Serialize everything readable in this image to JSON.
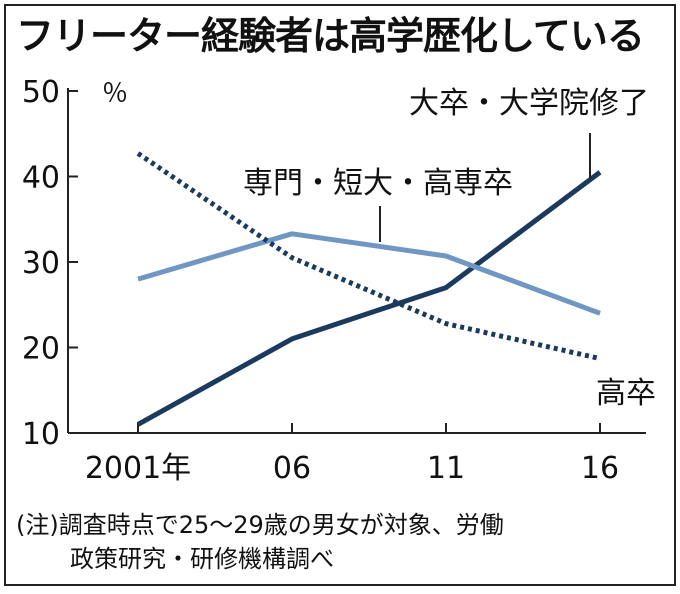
{
  "chart_data": {
    "type": "line",
    "title": "フリーター経験者は高学歴化している",
    "ylabel": "％",
    "xlabel": "",
    "categories": [
      "2001年",
      "06",
      "11",
      "16"
    ],
    "ylim": [
      10,
      50
    ],
    "yticks": [
      10,
      20,
      30,
      40,
      50
    ],
    "grid": false,
    "series": [
      {
        "name": "大卒・大学院修了",
        "values": [
          11,
          21,
          27,
          40.5
        ],
        "color": "#1b3a5e",
        "style": "solid"
      },
      {
        "name": "専門・短大・高専卒",
        "values": [
          28,
          33.3,
          30.7,
          24
        ],
        "color": "#7096c4",
        "style": "solid"
      },
      {
        "name": "高卒",
        "values": [
          42.7,
          30.5,
          22.8,
          18.7
        ],
        "color": "#1b3a5e",
        "style": "dotted"
      }
    ]
  },
  "note": {
    "line1": "(注)調査時点で25～29歳の男女が対象、労働",
    "line2": "政策研究・研修機構調べ"
  }
}
